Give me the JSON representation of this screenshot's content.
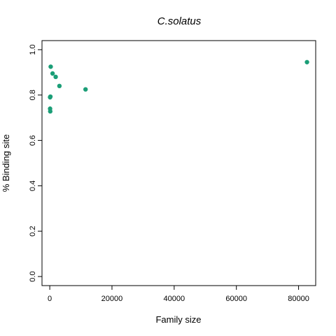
{
  "chart_data": {
    "type": "scatter",
    "title": "C.solatus",
    "xlabel": "Family size",
    "ylabel": "% Binding site",
    "xlim": [
      -2500,
      85500
    ],
    "ylim": [
      -0.04,
      1.04
    ],
    "xticks": [
      0,
      20000,
      40000,
      60000,
      80000
    ],
    "xtick_labels": [
      "0",
      "20000",
      "40000",
      "60000",
      "80000"
    ],
    "yticks": [
      0.0,
      0.2,
      0.4,
      0.6,
      0.8,
      1.0
    ],
    "ytick_labels": [
      "0.0",
      "0.2",
      "0.4",
      "0.6",
      "0.8",
      "1.0"
    ],
    "grid": false,
    "point_color": "#1b9e77",
    "points": [
      {
        "x": 82700,
        "y": 0.945
      },
      {
        "x": 11500,
        "y": 0.825
      },
      {
        "x": 3100,
        "y": 0.84
      },
      {
        "x": 1900,
        "y": 0.88
      },
      {
        "x": 900,
        "y": 0.895
      },
      {
        "x": 300,
        "y": 0.925
      },
      {
        "x": 200,
        "y": 0.793
      },
      {
        "x": 100,
        "y": 0.79
      },
      {
        "x": 100,
        "y": 0.74
      },
      {
        "x": 150,
        "y": 0.728
      }
    ]
  }
}
